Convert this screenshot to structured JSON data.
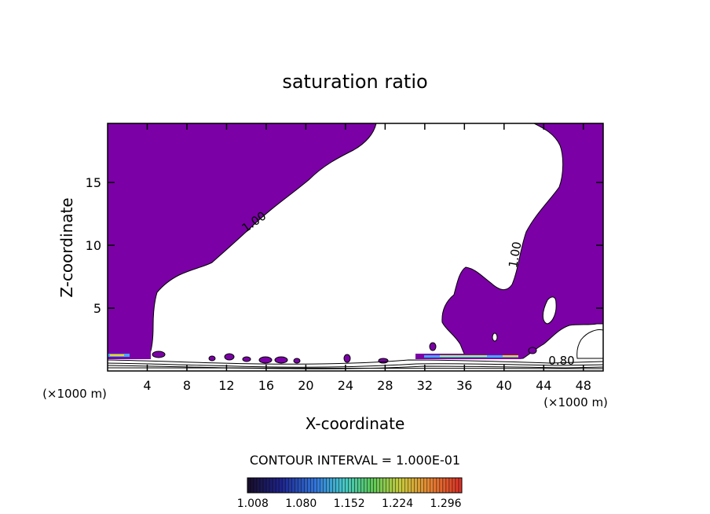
{
  "chart_data": {
    "type": "contour",
    "title": "saturation ratio",
    "xlabel": "X-coordinate",
    "ylabel": "Z-coordinate",
    "x_unit_left": "(×1000 m)",
    "x_unit_right": "(×1000 m)",
    "xlim": [
      0,
      50
    ],
    "ylim": [
      0,
      19.7
    ],
    "xticks": [
      4,
      8,
      12,
      16,
      20,
      24,
      28,
      32,
      36,
      40,
      44,
      48
    ],
    "yticks": [
      5,
      10,
      15
    ],
    "contour_labels": [
      {
        "text": "1.00",
        "x": 15,
        "y": 11.6
      },
      {
        "text": "1.00",
        "x": 41.5,
        "y": 9.2
      },
      {
        "text": "0.80",
        "x": 45.8,
        "y": 0.5
      }
    ],
    "contour_interval_text": "CONTOUR INTERVAL = 1.000E-01",
    "colorbar": {
      "tick_labels": [
        "1.008",
        "1.080",
        "1.152",
        "1.224",
        "1.296"
      ],
      "min": 1.0,
      "max": 1.32
    },
    "colors": {
      "supersaturated_fill": "#7b00a6",
      "background": "#ffffff",
      "contour_line": "#000000"
    }
  }
}
